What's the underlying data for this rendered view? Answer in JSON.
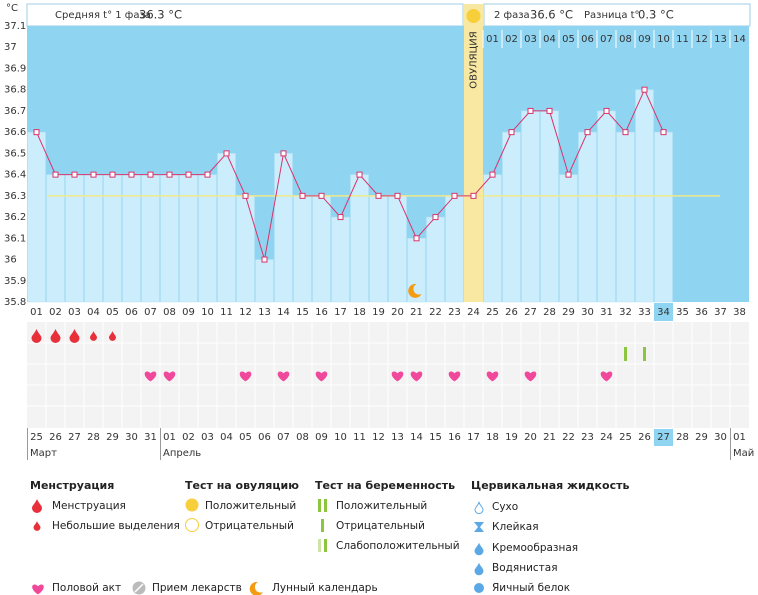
{
  "header": {
    "phase1_label": "Средняя t° 1 фаза",
    "phase1_value": "36.3 °C",
    "phase2_label": "2 фаза",
    "phase2_value": "36.6 °C",
    "diff_label": "Разница t°",
    "diff_value": "0.3 °C"
  },
  "chart_data": {
    "type": "line",
    "unit": "°C",
    "color": "#d9336c",
    "ylim": [
      35.8,
      37.1
    ],
    "yticks": [
      35.8,
      35.9,
      36,
      36.1,
      36.2,
      36.3,
      36.4,
      36.5,
      36.6,
      36.7,
      36.8,
      36.9,
      37,
      37.1
    ],
    "categories": [
      "01",
      "02",
      "03",
      "04",
      "05",
      "06",
      "07",
      "08",
      "09",
      "10",
      "11",
      "12",
      "13",
      "14",
      "15",
      "16",
      "17",
      "18",
      "19",
      "20",
      "21",
      "22",
      "23",
      "24",
      "25",
      "26",
      "27",
      "28",
      "29",
      "30",
      "31",
      "32",
      "33",
      "34",
      "35",
      "36",
      "37",
      "38"
    ],
    "values": [
      36.6,
      36.4,
      36.4,
      36.4,
      36.4,
      36.4,
      36.4,
      36.4,
      36.4,
      36.4,
      36.5,
      36.3,
      36.0,
      36.5,
      36.3,
      36.3,
      36.2,
      36.4,
      36.3,
      36.3,
      36.1,
      36.2,
      36.3,
      36.3,
      36.4,
      36.6,
      36.7,
      36.7,
      36.4,
      36.6,
      36.7,
      36.6,
      36.8,
      36.6,
      null,
      null,
      null,
      null
    ],
    "coverline": 36.3,
    "ovulation_day": 24,
    "ovulation_label": "ОВУЛЯЦИЯ",
    "phase2_days": [
      "01",
      "02",
      "03",
      "04",
      "05",
      "06",
      "07",
      "08",
      "09",
      "10",
      "11",
      "12",
      "13",
      "14"
    ],
    "current_day": 34,
    "dates": [
      "25",
      "26",
      "27",
      "28",
      "29",
      "30",
      "31",
      "01",
      "02",
      "03",
      "04",
      "05",
      "06",
      "07",
      "08",
      "09",
      "10",
      "11",
      "12",
      "13",
      "14",
      "15",
      "16",
      "17",
      "18",
      "19",
      "20",
      "21",
      "22",
      "23",
      "24",
      "25",
      "26",
      "27",
      "28",
      "29",
      "30",
      "01"
    ],
    "weekend": [
      false,
      false,
      false,
      true,
      true,
      false,
      false,
      false,
      false,
      false,
      true,
      true,
      false,
      false,
      false,
      false,
      false,
      true,
      true,
      false,
      false,
      false,
      false,
      false,
      true,
      true,
      false,
      false,
      false,
      false,
      false,
      true,
      true,
      false,
      false,
      false,
      false,
      false
    ],
    "months": [
      "Март",
      "Апрель",
      "Май"
    ],
    "menstruation": [
      {
        "day": 1,
        "kind": "heavy"
      },
      {
        "day": 2,
        "kind": "heavy"
      },
      {
        "day": 3,
        "kind": "heavy"
      },
      {
        "day": 4,
        "kind": "light"
      },
      {
        "day": 5,
        "kind": "light"
      }
    ],
    "pregnancy_tests": [
      {
        "day": 32,
        "result": "negative"
      },
      {
        "day": 33,
        "result": "negative"
      }
    ],
    "intercourse_days": [
      7,
      8,
      12,
      14,
      16,
      20,
      21,
      23,
      25,
      27,
      31
    ],
    "moon_day": 21
  },
  "legend": {
    "menstruation": {
      "title": "Менструация",
      "items": [
        "Менструация",
        "Небольшие выделения"
      ]
    },
    "ovulation_test": {
      "title": "Тест на овуляцию",
      "items": [
        "Положительный",
        "Отрицательный"
      ]
    },
    "pregnancy_test": {
      "title": "Тест на беременность",
      "items": [
        "Положительный",
        "Отрицательный",
        "Слабоположительный"
      ]
    },
    "cervical_fluid": {
      "title": "Цервикальная жидкость",
      "items": [
        "Сухо",
        "Клейкая",
        "Кремообразная",
        "Водянистая",
        "Яичный белок"
      ]
    },
    "other": [
      "Половой акт",
      "Прием лекарств",
      "Лунный календарь"
    ]
  }
}
